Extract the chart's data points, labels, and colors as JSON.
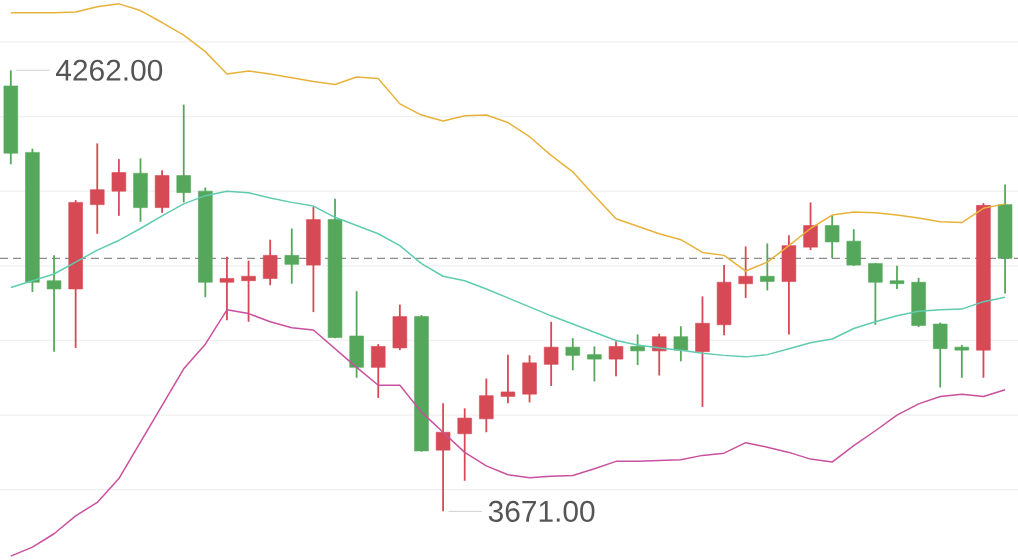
{
  "chart_data": {
    "type": "candlestick",
    "categories": [
      null,
      null,
      null,
      null,
      null,
      null,
      null,
      null,
      null,
      null,
      null,
      null,
      null,
      null,
      null,
      null,
      null,
      null,
      null,
      null,
      null,
      null,
      null,
      null,
      null,
      null,
      null,
      null,
      null,
      null,
      null,
      null,
      null,
      null,
      null,
      null,
      null,
      null,
      null,
      null,
      null,
      null,
      null,
      null,
      null,
      null,
      null
    ],
    "ohlc": [
      [
        4241,
        4262,
        4136,
        4151
      ],
      [
        4152,
        4157,
        3965,
        3978
      ],
      [
        3980,
        4014,
        3885,
        3969
      ],
      [
        3969,
        4088,
        3890,
        4085
      ],
      [
        4082,
        4164,
        4043,
        4102
      ],
      [
        4100,
        4143,
        4067,
        4125
      ],
      [
        4124,
        4144,
        4059,
        4078
      ],
      [
        4078,
        4128,
        4071,
        4121
      ],
      [
        4121,
        4216,
        4085,
        4098
      ],
      [
        4100,
        4105,
        3958,
        3978
      ],
      [
        3978,
        4012,
        3927,
        3983
      ],
      [
        3980,
        4007,
        3925,
        3986
      ],
      [
        3983,
        4035,
        3974,
        4014
      ],
      [
        4014,
        4050,
        3976,
        4002
      ],
      [
        4001,
        4079,
        3938,
        4062
      ],
      [
        4062,
        4090,
        3903,
        3904
      ],
      [
        3906,
        3966,
        3850,
        3864
      ],
      [
        3864,
        3895,
        3823,
        3892
      ],
      [
        3890,
        3948,
        3887,
        3932
      ],
      [
        3932,
        3934,
        3751,
        3752
      ],
      [
        3753,
        3816,
        3671,
        3777
      ],
      [
        3775,
        3809,
        3712,
        3796
      ],
      [
        3795,
        3849,
        3777,
        3826
      ],
      [
        3825,
        3881,
        3816,
        3831
      ],
      [
        3828,
        3880,
        3817,
        3870
      ],
      [
        3868,
        3925,
        3839,
        3891
      ],
      [
        3891,
        3903,
        3860,
        3880
      ],
      [
        3881,
        3892,
        3845,
        3875
      ],
      [
        3875,
        3899,
        3852,
        3892
      ],
      [
        3892,
        3908,
        3867,
        3886
      ],
      [
        3886,
        3909,
        3853,
        3905
      ],
      [
        3905,
        3919,
        3872,
        3887
      ],
      [
        3885,
        3959,
        3811,
        3923
      ],
      [
        3921,
        4001,
        3907,
        3978
      ],
      [
        3976,
        4026,
        3957,
        3986
      ],
      [
        3986,
        4030,
        3967,
        3979
      ],
      [
        3979,
        4041,
        3908,
        4027
      ],
      [
        4025,
        4085,
        4021,
        4054
      ],
      [
        4054,
        4068,
        4010,
        4032
      ],
      [
        4033,
        4049,
        4000,
        4001
      ],
      [
        4003,
        4004,
        3921,
        3978
      ],
      [
        3980,
        4000,
        3969,
        3976
      ],
      [
        3978,
        3984,
        3918,
        3920
      ],
      [
        3922,
        3924,
        3837,
        3889
      ],
      [
        3891,
        3894,
        3850,
        3887
      ],
      [
        3887,
        4084,
        3850,
        4081
      ],
      [
        4082,
        4109,
        3963,
        4010
      ]
    ],
    "colors": [
      "#55a85b",
      "#55a85b",
      "#55a85b",
      "#d64a55",
      "#d64a55",
      "#d64a55",
      "#55a85b",
      "#d64a55",
      "#55a85b",
      "#55a85b",
      "#d64a55",
      "#d64a55",
      "#d64a55",
      "#55a85b",
      "#d64a55",
      "#55a85b",
      "#55a85b",
      "#d64a55",
      "#d64a55",
      "#55a85b",
      "#d64a55",
      "#d64a55",
      "#d64a55",
      "#d64a55",
      "#d64a55",
      "#d64a55",
      "#55a85b",
      "#55a85b",
      "#d64a55",
      "#55a85b",
      "#d64a55",
      "#55a85b",
      "#d64a55",
      "#d64a55",
      "#d64a55",
      "#55a85b",
      "#d64a55",
      "#d64a55",
      "#55a85b",
      "#55a85b",
      "#55a85b",
      "#55a85b",
      "#55a85b",
      "#55a85b",
      "#55a85b",
      "#d64a55",
      "#55a85b"
    ],
    "series": [
      {
        "type": "line",
        "color": "#e8b23a",
        "values": [
          4339,
          4339,
          4339,
          4340,
          4347,
          4351,
          4342,
          4326,
          4309,
          4287,
          4257,
          4261,
          4257,
          4252,
          4247,
          4243,
          4253,
          4251,
          4217,
          4202,
          4194,
          4201,
          4202,
          4192,
          4173,
          4148,
          4126,
          4094,
          4063,
          4053,
          4043,
          4035,
          4018,
          4014,
          3993,
          4005,
          4027,
          4050,
          4068,
          4072,
          4071,
          4068,
          4064,
          4059,
          4058,
          4077,
          4083
        ]
      },
      {
        "type": "line",
        "color": "#5fcbb0",
        "values": [
          3971,
          3980,
          3989,
          4005,
          4021,
          4034,
          4050,
          4067,
          4083,
          4094,
          4100,
          4098,
          4091,
          4085,
          4080,
          4065,
          4054,
          4043,
          4027,
          4003,
          3986,
          3980,
          3969,
          3957,
          3945,
          3933,
          3922,
          3911,
          3900,
          3894,
          3890,
          3887,
          3883,
          3880,
          3878,
          3881,
          3889,
          3897,
          3902,
          3916,
          3925,
          3933,
          3939,
          3941,
          3942,
          3952,
          3958
        ]
      },
      {
        "type": "line",
        "color": "#c9509e",
        "values": [
          3611,
          3623,
          3641,
          3665,
          3683,
          3715,
          3764,
          3813,
          3862,
          3895,
          3941,
          3936,
          3925,
          3917,
          3914,
          3889,
          3864,
          3840,
          3840,
          3804,
          3777,
          3750,
          3732,
          3720,
          3716,
          3718,
          3719,
          3728,
          3738,
          3738,
          3739,
          3740,
          3746,
          3749,
          3763,
          3757,
          3750,
          3741,
          3737,
          3759,
          3779,
          3800,
          3815,
          3825,
          3828,
          3825,
          3834
        ]
      }
    ],
    "yticks": [
      {
        "value": 3700,
        "label": null
      },
      {
        "value": 3800,
        "label": null
      },
      {
        "value": 3900,
        "label": null
      },
      {
        "value": 4000,
        "label": null
      },
      {
        "value": 4100,
        "label": null
      },
      {
        "value": 4200,
        "label": null
      },
      {
        "value": 4300,
        "label": null
      }
    ],
    "grid": "y",
    "ref_lines": [
      {
        "axis": "y",
        "value": 4010,
        "color": "#8c8c8c",
        "line_style": "dashed"
      }
    ],
    "annotations": [
      "4262.00",
      "3671.00"
    ]
  }
}
